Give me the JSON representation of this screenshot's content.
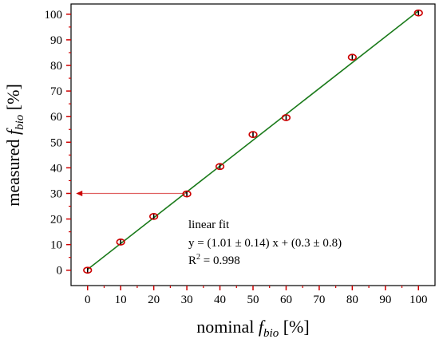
{
  "chart_data": {
    "type": "scatter",
    "xlabel": {
      "prefix": "nominal ",
      "var": "f",
      "sub": "bio",
      "suffix": " [%]"
    },
    "ylabel": {
      "prefix": "measured ",
      "var": "f",
      "sub": "bio",
      "suffix": " [%]"
    },
    "xlim": [
      -5,
      105
    ],
    "ylim": [
      -6,
      104
    ],
    "x_ticks": [
      0,
      10,
      20,
      30,
      40,
      50,
      60,
      70,
      80,
      90,
      100
    ],
    "y_ticks": [
      0,
      10,
      20,
      30,
      40,
      50,
      60,
      70,
      80,
      90,
      100
    ],
    "grid": false,
    "series": [
      {
        "points": [
          {
            "x": 0,
            "y": 0
          },
          {
            "x": 10,
            "y": 11
          },
          {
            "x": 20,
            "y": 21
          },
          {
            "x": 30,
            "y": 29.8
          },
          {
            "x": 40,
            "y": 40.5
          },
          {
            "x": 50,
            "y": 53
          },
          {
            "x": 60,
            "y": 59.6
          },
          {
            "x": 80,
            "y": 83.2
          },
          {
            "x": 100,
            "y": 100.5
          }
        ],
        "color": "#cc0000"
      }
    ],
    "fit_line": {
      "slope": 1.01,
      "intercept": 0.3,
      "x_range": [
        0,
        100
      ],
      "color": "#1a7a1a"
    },
    "arrow": {
      "from": [
        30,
        30
      ],
      "to": [
        -3.5,
        30
      ],
      "color": "#e06060"
    },
    "annotation": {
      "line1": "linear fit",
      "line2": "y = (1.01 ± 0.14) x + (0.3 ± 0.8)",
      "line3_prefix": "R",
      "line3_sup": "2",
      "line3_suffix": " = 0.998"
    },
    "tick_mark_color": "#cc0000"
  }
}
